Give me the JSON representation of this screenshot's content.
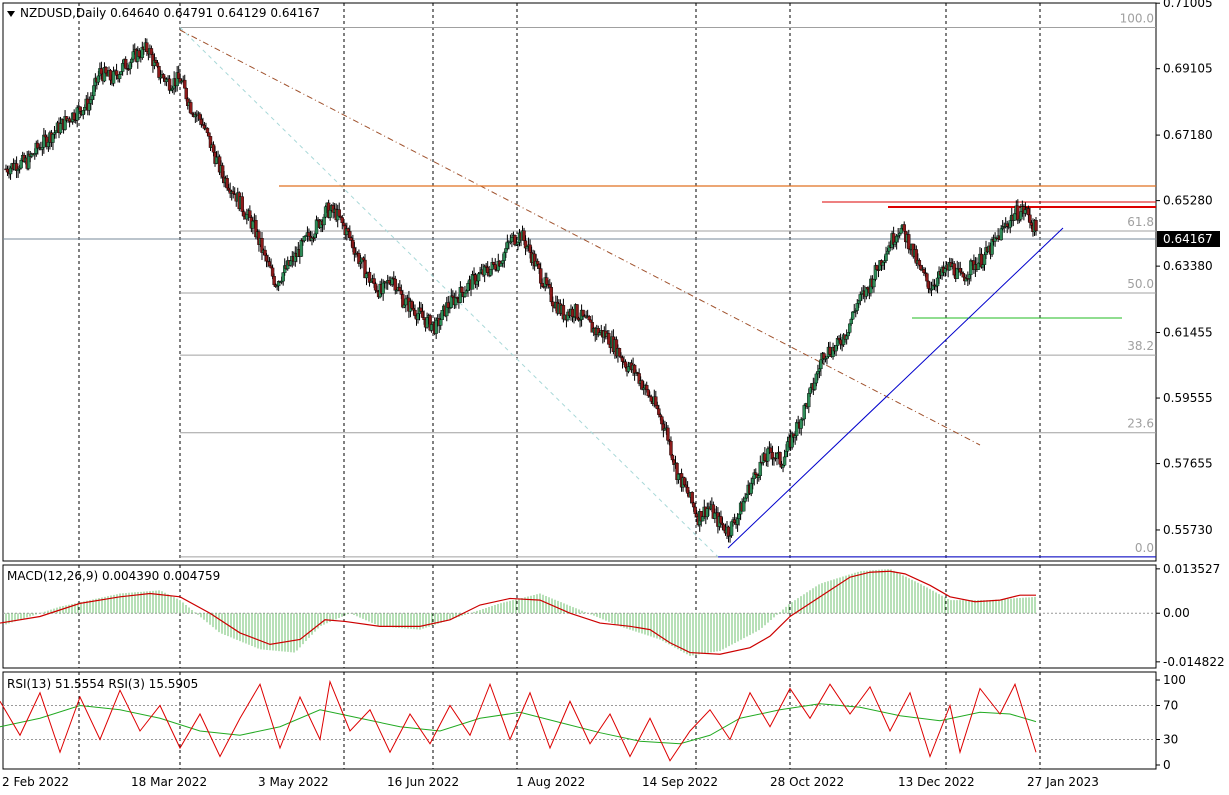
{
  "chart_data": [
    {
      "type": "candlestick",
      "symbol": "NZDUSD",
      "timeframe": "Daily",
      "header": "NZDUSD,Daily  0.64640 0.64791 0.64129 0.64167",
      "ohlc": {
        "open": 0.6464,
        "high": 0.64791,
        "low": 0.64129,
        "close": 0.64167
      },
      "current_price": "0.64167",
      "ylim": [
        0.5483,
        0.7101
      ],
      "y_ticks": [
        "0.71005",
        "0.69105",
        "0.67180",
        "0.65280",
        "0.63380",
        "0.61455",
        "0.59555",
        "0.57655",
        "0.55730"
      ],
      "x_ticks": [
        "2 Feb 2022",
        "18 Mar 2022",
        "3 May 2022",
        "16 Jun 2022",
        "1 Aug 2022",
        "14 Sep 2022",
        "28 Oct 2022",
        "13 Dec 2022",
        "27 Jan 2023"
      ],
      "fibonacci_levels": [
        "100.0",
        "61.8",
        "50.0",
        "38.2",
        "23.6",
        "0.0"
      ],
      "fib_prices": [
        0.703,
        0.644,
        0.626,
        0.608,
        0.5855,
        0.5495
      ],
      "grid": true,
      "close_path": [
        [
          0,
          0.662
        ],
        [
          7,
          0.6635
        ],
        [
          14,
          0.664
        ],
        [
          21,
          0.668
        ],
        [
          28,
          0.671
        ],
        [
          35,
          0.674
        ],
        [
          42,
          0.677
        ],
        [
          48,
          0.679
        ],
        [
          55,
          0.681
        ],
        [
          62,
          0.69
        ],
        [
          70,
          0.688
        ],
        [
          78,
          0.692
        ],
        [
          86,
          0.695
        ],
        [
          94,
          0.697
        ],
        [
          100,
          0.69
        ],
        [
          108,
          0.687
        ],
        [
          115,
          0.688
        ],
        [
          122,
          0.68
        ],
        [
          129,
          0.676
        ],
        [
          136,
          0.668
        ],
        [
          143,
          0.66
        ],
        [
          150,
          0.656
        ],
        [
          157,
          0.65
        ],
        [
          164,
          0.645
        ],
        [
          171,
          0.636
        ],
        [
          178,
          0.629
        ],
        [
          185,
          0.633
        ],
        [
          192,
          0.637
        ],
        [
          199,
          0.642
        ],
        [
          206,
          0.646
        ],
        [
          212,
          0.65
        ],
        [
          218,
          0.649
        ],
        [
          226,
          0.643
        ],
        [
          233,
          0.636
        ],
        [
          240,
          0.63
        ],
        [
          248,
          0.626
        ],
        [
          255,
          0.631
        ],
        [
          262,
          0.624
        ],
        [
          270,
          0.621
        ],
        [
          277,
          0.618
        ],
        [
          284,
          0.616
        ],
        [
          291,
          0.622
        ],
        [
          298,
          0.625
        ],
        [
          305,
          0.628
        ],
        [
          312,
          0.631
        ],
        [
          320,
          0.633
        ],
        [
          327,
          0.636
        ],
        [
          333,
          0.641
        ],
        [
          340,
          0.643
        ],
        [
          347,
          0.637
        ],
        [
          354,
          0.63
        ],
        [
          361,
          0.624
        ],
        [
          368,
          0.62
        ],
        [
          375,
          0.621
        ],
        [
          382,
          0.618
        ],
        [
          389,
          0.615
        ],
        [
          396,
          0.614
        ],
        [
          403,
          0.61
        ],
        [
          410,
          0.605
        ],
        [
          416,
          0.603
        ],
        [
          422,
          0.598
        ],
        [
          429,
          0.593
        ],
        [
          436,
          0.586
        ],
        [
          443,
          0.574
        ],
        [
          450,
          0.568
        ],
        [
          457,
          0.561
        ],
        [
          464,
          0.564
        ],
        [
          470,
          0.56
        ],
        [
          477,
          0.557
        ],
        [
          484,
          0.562
        ],
        [
          491,
          0.57
        ],
        [
          498,
          0.576
        ],
        [
          505,
          0.58
        ],
        [
          512,
          0.577
        ],
        [
          519,
          0.584
        ],
        [
          526,
          0.591
        ],
        [
          533,
          0.599
        ],
        [
          540,
          0.609
        ],
        [
          548,
          0.61
        ],
        [
          555,
          0.615
        ],
        [
          562,
          0.623
        ],
        [
          569,
          0.627
        ],
        [
          576,
          0.634
        ],
        [
          583,
          0.64
        ],
        [
          590,
          0.645
        ],
        [
          596,
          0.641
        ],
        [
          603,
          0.633
        ],
        [
          610,
          0.628
        ],
        [
          617,
          0.631
        ],
        [
          624,
          0.634
        ],
        [
          631,
          0.63
        ],
        [
          638,
          0.634
        ],
        [
          645,
          0.636
        ],
        [
          652,
          0.64
        ],
        [
          659,
          0.645
        ],
        [
          666,
          0.649
        ],
        [
          673,
          0.65
        ],
        [
          680,
          0.644
        ]
      ],
      "macd": {
        "label": "MACD(12,26,9) 0.004390 0.004759",
        "ylim": [
          -0.0167,
          0.0147
        ],
        "y_ticks": [
          "0.013527",
          "0.00",
          "-0.014822"
        ],
        "signal_path": [
          [
            0,
            -0.003
          ],
          [
            40,
            -0.001
          ],
          [
            80,
            0.003
          ],
          [
            120,
            0.005
          ],
          [
            150,
            0.006
          ],
          [
            180,
            0.005
          ],
          [
            210,
            0.0
          ],
          [
            240,
            -0.006
          ],
          [
            270,
            -0.0095
          ],
          [
            300,
            -0.008
          ],
          [
            325,
            -0.002
          ],
          [
            345,
            -0.0025
          ],
          [
            380,
            -0.004
          ],
          [
            420,
            -0.004
          ],
          [
            450,
            -0.002
          ],
          [
            480,
            0.0025
          ],
          [
            510,
            0.0045
          ],
          [
            540,
            0.004
          ],
          [
            570,
            0.0
          ],
          [
            600,
            -0.003
          ],
          [
            630,
            -0.004
          ],
          [
            650,
            -0.005
          ],
          [
            670,
            -0.009
          ],
          [
            690,
            -0.012
          ],
          [
            720,
            -0.0125
          ],
          [
            750,
            -0.0105
          ],
          [
            770,
            -0.007
          ],
          [
            790,
            -0.001
          ],
          [
            810,
            0.003
          ],
          [
            830,
            0.007
          ],
          [
            850,
            0.011
          ],
          [
            870,
            0.0125
          ],
          [
            890,
            0.0128
          ],
          [
            905,
            0.012
          ],
          [
            930,
            0.0085
          ],
          [
            950,
            0.005
          ],
          [
            975,
            0.0035
          ],
          [
            1000,
            0.004
          ],
          [
            1020,
            0.0055
          ],
          [
            1036,
            0.0055
          ]
        ],
        "hist_path": [
          [
            0,
            -0.004
          ],
          [
            60,
            0.002
          ],
          [
            120,
            0.006
          ],
          [
            160,
            0.007
          ],
          [
            180,
            0.004
          ],
          [
            220,
            -0.006
          ],
          [
            260,
            -0.011
          ],
          [
            295,
            -0.012
          ],
          [
            320,
            -0.004
          ],
          [
            350,
            0.0
          ],
          [
            380,
            -0.004
          ],
          [
            420,
            -0.005
          ],
          [
            460,
            -0.001
          ],
          [
            500,
            0.003
          ],
          [
            540,
            0.006
          ],
          [
            580,
            0.001
          ],
          [
            620,
            -0.004
          ],
          [
            660,
            -0.008
          ],
          [
            690,
            -0.013
          ],
          [
            720,
            -0.0115
          ],
          [
            760,
            -0.005
          ],
          [
            790,
            0.003
          ],
          [
            820,
            0.009
          ],
          [
            860,
            0.0128
          ],
          [
            890,
            0.0135
          ],
          [
            920,
            0.009
          ],
          [
            950,
            0.004
          ],
          [
            990,
            0.004
          ],
          [
            1036,
            0.005
          ]
        ]
      },
      "rsi": {
        "label": "RSI(13) 51.5554  RSI(3) 15.5905",
        "ylim": [
          0,
          100
        ],
        "y_ticks": [
          "100",
          "70",
          "30",
          "0"
        ],
        "levels": [
          70,
          30
        ],
        "rsi13_path": [
          [
            0,
            45
          ],
          [
            40,
            55
          ],
          [
            80,
            70
          ],
          [
            120,
            65
          ],
          [
            160,
            55
          ],
          [
            200,
            40
          ],
          [
            240,
            35
          ],
          [
            280,
            45
          ],
          [
            320,
            65
          ],
          [
            360,
            55
          ],
          [
            400,
            45
          ],
          [
            440,
            40
          ],
          [
            480,
            55
          ],
          [
            520,
            62
          ],
          [
            560,
            50
          ],
          [
            600,
            38
          ],
          [
            640,
            28
          ],
          [
            680,
            25
          ],
          [
            710,
            35
          ],
          [
            740,
            55
          ],
          [
            780,
            65
          ],
          [
            820,
            72
          ],
          [
            860,
            68
          ],
          [
            900,
            58
          ],
          [
            940,
            52
          ],
          [
            980,
            62
          ],
          [
            1010,
            60
          ],
          [
            1036,
            51
          ]
        ],
        "rsi3_path": [
          [
            0,
            75
          ],
          [
            20,
            35
          ],
          [
            40,
            85
          ],
          [
            60,
            15
          ],
          [
            80,
            80
          ],
          [
            100,
            30
          ],
          [
            120,
            88
          ],
          [
            140,
            40
          ],
          [
            160,
            70
          ],
          [
            180,
            20
          ],
          [
            200,
            60
          ],
          [
            220,
            10
          ],
          [
            240,
            55
          ],
          [
            260,
            95
          ],
          [
            280,
            20
          ],
          [
            300,
            80
          ],
          [
            320,
            30
          ],
          [
            330,
            98
          ],
          [
            350,
            40
          ],
          [
            370,
            65
          ],
          [
            390,
            15
          ],
          [
            410,
            60
          ],
          [
            430,
            25
          ],
          [
            450,
            70
          ],
          [
            470,
            35
          ],
          [
            490,
            95
          ],
          [
            510,
            30
          ],
          [
            530,
            85
          ],
          [
            550,
            20
          ],
          [
            570,
            75
          ],
          [
            590,
            25
          ],
          [
            610,
            60
          ],
          [
            630,
            10
          ],
          [
            650,
            55
          ],
          [
            670,
            5
          ],
          [
            690,
            40
          ],
          [
            710,
            65
          ],
          [
            730,
            30
          ],
          [
            750,
            85
          ],
          [
            770,
            45
          ],
          [
            790,
            90
          ],
          [
            810,
            55
          ],
          [
            830,
            95
          ],
          [
            850,
            60
          ],
          [
            870,
            92
          ],
          [
            890,
            40
          ],
          [
            910,
            85
          ],
          [
            930,
            10
          ],
          [
            950,
            70
          ],
          [
            960,
            15
          ],
          [
            980,
            90
          ],
          [
            1000,
            60
          ],
          [
            1015,
            95
          ],
          [
            1036,
            15
          ]
        ]
      }
    }
  ]
}
